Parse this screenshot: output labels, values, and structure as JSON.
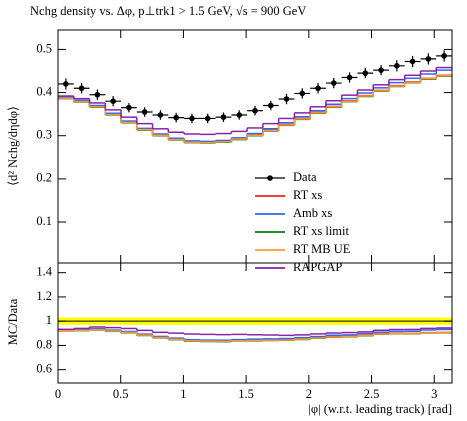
{
  "chart_data": [
    {
      "type": "histogram",
      "title": "Nchg density vs. Δφ, p⊥trk1 > 1.5 GeV, √s = 900 GeV",
      "ylabel": "⟨d² Nchg/dηdφ⟩",
      "xlim": [
        0,
        3.1416
      ],
      "xticks": [
        0,
        0.5,
        1,
        1.5,
        2,
        2.5,
        3
      ],
      "xtick_labels": false,
      "ylim": [
        0.005,
        0.545
      ],
      "yticks": [
        0.1,
        0.2,
        0.3,
        0.4,
        0.5
      ],
      "legend": true,
      "bins": [
        0,
        0.1257,
        0.2513,
        0.377,
        0.5027,
        0.6283,
        0.754,
        0.8796,
        1.0053,
        1.131,
        1.2566,
        1.3823,
        1.508,
        1.6336,
        1.7593,
        1.885,
        2.0106,
        2.1363,
        2.2619,
        2.3876,
        2.5133,
        2.6389,
        2.7646,
        2.8903,
        3.0159,
        3.1416
      ],
      "series": [
        {
          "name": "Data",
          "color": "#000000",
          "style": "points",
          "values": [
            0.42,
            0.41,
            0.395,
            0.38,
            0.365,
            0.355,
            0.348,
            0.342,
            0.34,
            0.34,
            0.343,
            0.348,
            0.358,
            0.37,
            0.385,
            0.398,
            0.41,
            0.422,
            0.435,
            0.445,
            0.452,
            0.462,
            0.472,
            0.478,
            0.485
          ],
          "errors": [
            0.013,
            0.012,
            0.012,
            0.012,
            0.011,
            0.011,
            0.011,
            0.011,
            0.011,
            0.011,
            0.011,
            0.011,
            0.011,
            0.011,
            0.012,
            0.012,
            0.012,
            0.012,
            0.012,
            0.012,
            0.012,
            0.013,
            0.013,
            0.013,
            0.013
          ]
        },
        {
          "name": "RT xs",
          "color": "#ee2222",
          "values": [
            0.388,
            0.38,
            0.368,
            0.35,
            0.332,
            0.315,
            0.302,
            0.292,
            0.286,
            0.285,
            0.287,
            0.293,
            0.302,
            0.313,
            0.326,
            0.34,
            0.354,
            0.368,
            0.381,
            0.393,
            0.405,
            0.416,
            0.425,
            0.433,
            0.44
          ]
        },
        {
          "name": "Amb xs",
          "color": "#3366ee",
          "values": [
            0.39,
            0.382,
            0.37,
            0.352,
            0.334,
            0.317,
            0.304,
            0.294,
            0.288,
            0.287,
            0.289,
            0.295,
            0.305,
            0.316,
            0.33,
            0.344,
            0.358,
            0.373,
            0.386,
            0.399,
            0.411,
            0.423,
            0.433,
            0.443,
            0.452
          ]
        },
        {
          "name": "RT xs limit",
          "color": "#117711",
          "values": [
            0.386,
            0.378,
            0.366,
            0.348,
            0.33,
            0.313,
            0.3,
            0.29,
            0.284,
            0.283,
            0.285,
            0.291,
            0.3,
            0.311,
            0.324,
            0.338,
            0.352,
            0.366,
            0.379,
            0.391,
            0.403,
            0.414,
            0.423,
            0.431,
            0.438
          ]
        },
        {
          "name": "RT MB UE",
          "color": "#ff9933",
          "values": [
            0.387,
            0.379,
            0.367,
            0.349,
            0.331,
            0.314,
            0.301,
            0.291,
            0.285,
            0.284,
            0.286,
            0.292,
            0.301,
            0.312,
            0.325,
            0.339,
            0.353,
            0.367,
            0.38,
            0.392,
            0.404,
            0.415,
            0.424,
            0.432,
            0.439
          ]
        },
        {
          "name": "RAPGAP",
          "color": "#8822aa",
          "values": [
            0.392,
            0.386,
            0.376,
            0.36,
            0.343,
            0.328,
            0.316,
            0.308,
            0.304,
            0.303,
            0.305,
            0.31,
            0.318,
            0.328,
            0.34,
            0.353,
            0.367,
            0.381,
            0.394,
            0.406,
            0.418,
            0.43,
            0.44,
            0.45,
            0.458
          ]
        }
      ]
    },
    {
      "type": "histogram",
      "ylabel": "MC/Data",
      "xlabel": "|φ| (w.r.t. leading track) [rad]",
      "xlim": [
        0,
        3.1416
      ],
      "xticks": [
        0,
        0.5,
        1,
        1.5,
        2,
        2.5,
        3
      ],
      "xtick_labels": true,
      "ylim": [
        0.49,
        1.48
      ],
      "yticks": [
        0.6,
        0.8,
        1,
        1.2,
        1.4
      ],
      "legend": false,
      "reference_band": [
        0.97,
        1.03
      ],
      "reference_line": 1,
      "reference_color": "#ffff00",
      "bins": [
        0,
        0.1257,
        0.2513,
        0.377,
        0.5027,
        0.6283,
        0.754,
        0.8796,
        1.0053,
        1.131,
        1.2566,
        1.3823,
        1.508,
        1.6336,
        1.7593,
        1.885,
        2.0106,
        2.1363,
        2.2619,
        2.3876,
        2.5133,
        2.6389,
        2.7646,
        2.8903,
        3.0159,
        3.1416
      ],
      "series": [
        {
          "color": "#ee2222",
          "values": [
            0.924,
            0.927,
            0.932,
            0.921,
            0.91,
            0.887,
            0.868,
            0.854,
            0.841,
            0.838,
            0.837,
            0.842,
            0.844,
            0.846,
            0.847,
            0.854,
            0.863,
            0.872,
            0.876,
            0.883,
            0.896,
            0.9,
            0.9,
            0.906,
            0.907
          ]
        },
        {
          "color": "#3366ee",
          "values": [
            0.929,
            0.932,
            0.937,
            0.926,
            0.915,
            0.893,
            0.874,
            0.86,
            0.847,
            0.844,
            0.843,
            0.848,
            0.852,
            0.854,
            0.857,
            0.864,
            0.873,
            0.884,
            0.887,
            0.897,
            0.909,
            0.916,
            0.917,
            0.927,
            0.932
          ]
        },
        {
          "color": "#117711",
          "values": [
            0.919,
            0.922,
            0.927,
            0.916,
            0.904,
            0.882,
            0.862,
            0.848,
            0.835,
            0.832,
            0.831,
            0.836,
            0.838,
            0.841,
            0.842,
            0.849,
            0.859,
            0.867,
            0.871,
            0.879,
            0.892,
            0.896,
            0.896,
            0.902,
            0.903
          ]
        },
        {
          "color": "#ff9933",
          "values": [
            0.921,
            0.924,
            0.929,
            0.918,
            0.907,
            0.885,
            0.865,
            0.851,
            0.838,
            0.835,
            0.834,
            0.839,
            0.841,
            0.843,
            0.844,
            0.852,
            0.861,
            0.87,
            0.874,
            0.881,
            0.894,
            0.898,
            0.898,
            0.904,
            0.905
          ]
        },
        {
          "color": "#8822aa",
          "values": [
            0.933,
            0.941,
            0.952,
            0.947,
            0.94,
            0.924,
            0.908,
            0.901,
            0.894,
            0.891,
            0.889,
            0.891,
            0.888,
            0.886,
            0.883,
            0.887,
            0.895,
            0.903,
            0.906,
            0.912,
            0.925,
            0.931,
            0.932,
            0.941,
            0.944
          ]
        }
      ]
    }
  ]
}
